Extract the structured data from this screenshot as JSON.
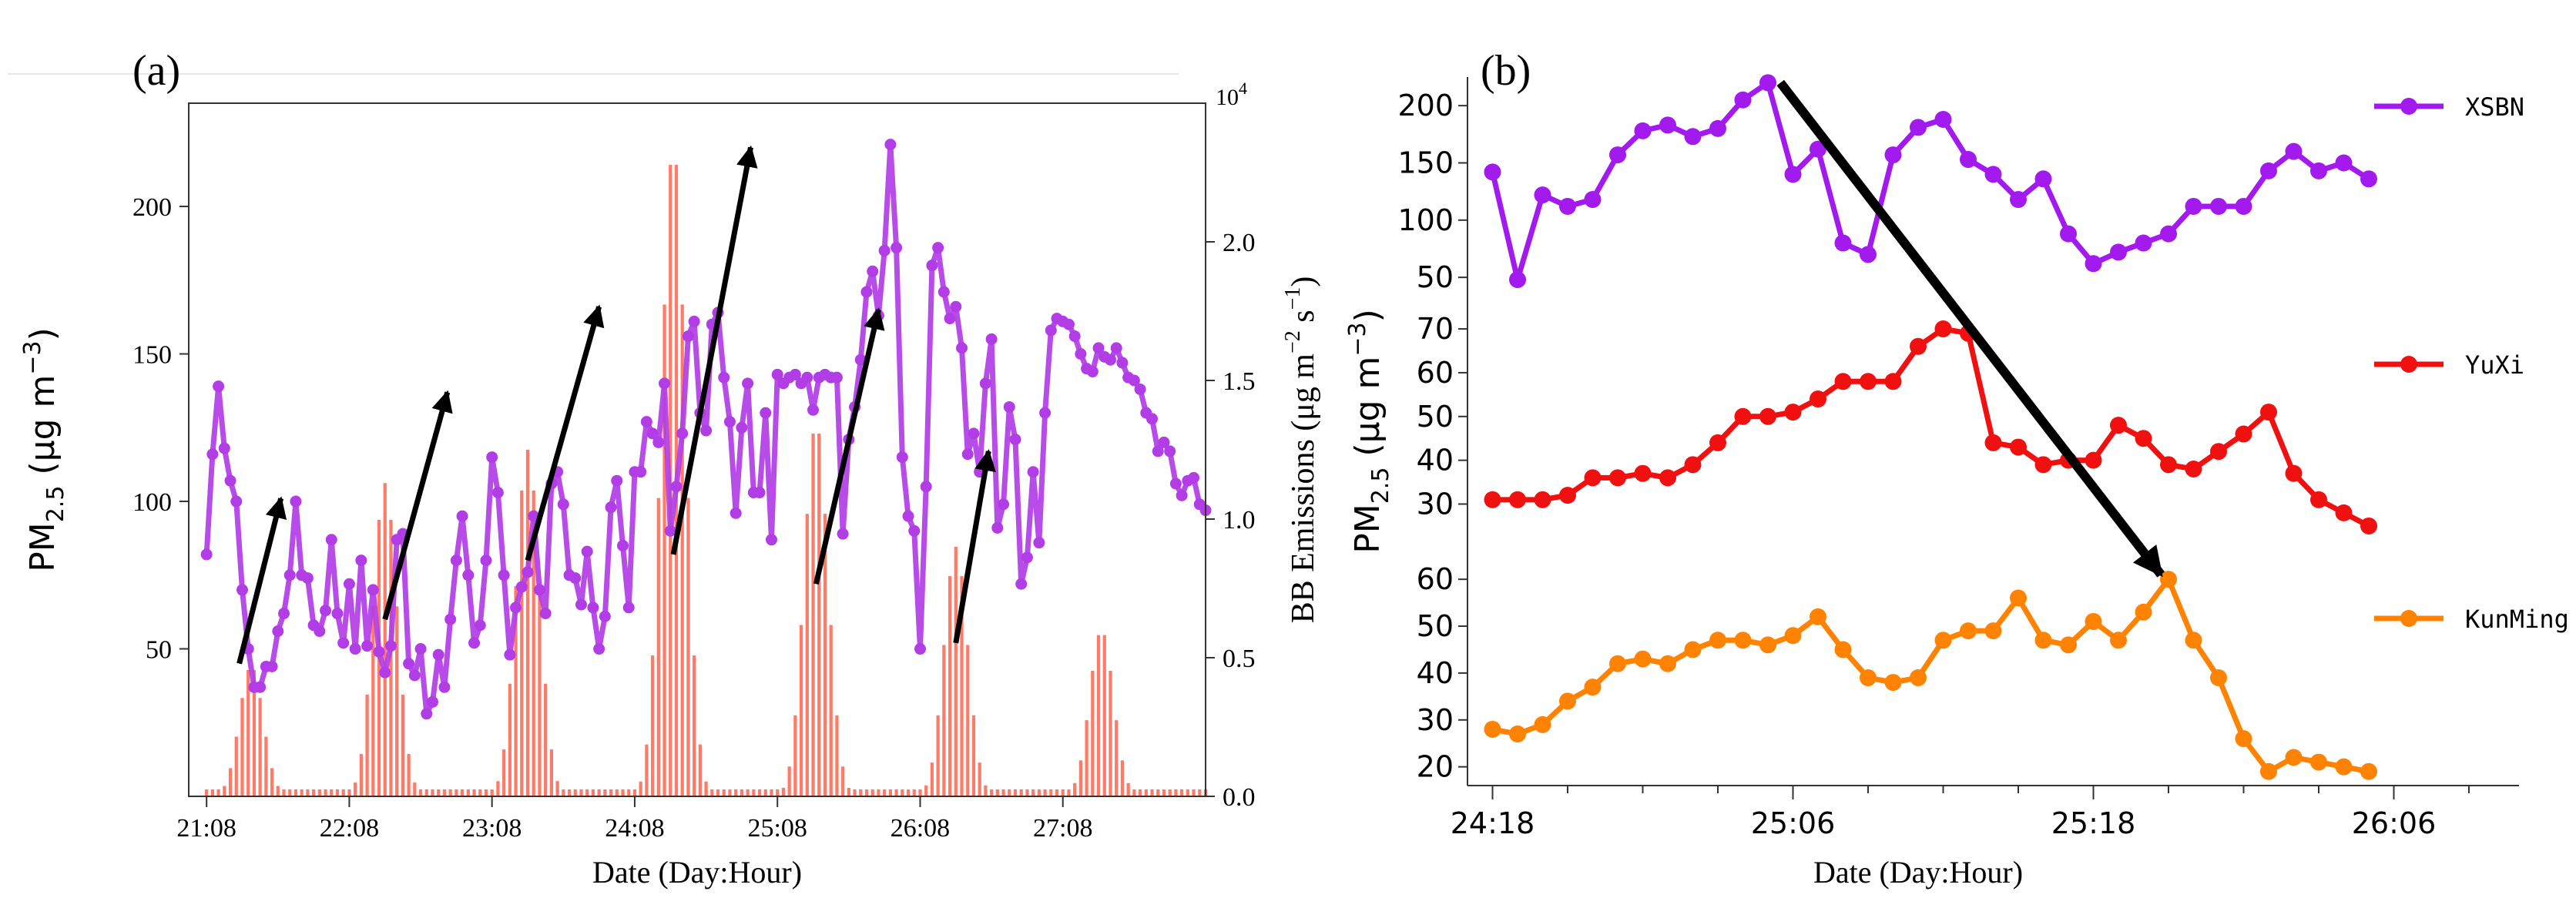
{
  "colors": {
    "pm_line": "#b23de6",
    "bb_bar": "#ff6b57",
    "xsbn": "#a21aee",
    "yuxi": "#f01010",
    "kunming": "#ff8200",
    "arrow": "#000000",
    "axis": "#333333"
  },
  "chart_data": [
    {
      "panel_label": "(a)",
      "type": "line+bar",
      "xlabel": "Date (Day:Hour)",
      "ylabel_left": {
        "main": "PM",
        "sub": "2.5",
        "unit_pre": " (μg m",
        "unit_sup": "−3",
        "unit_post": ")"
      },
      "ylabel_right": {
        "main": "BB Emissions (μg m",
        "sup1": "−2",
        "mid": " s",
        "sup2": "−1",
        "post": ")"
      },
      "right_axis_multiplier": "10",
      "right_axis_multiplier_exp": "4",
      "x_tick_labels": [
        "21:08",
        "22:08",
        "23:08",
        "24:08",
        "25:08",
        "26:08",
        "27:08"
      ],
      "x_hours": [
        0,
        24,
        48,
        72,
        96,
        120,
        144
      ],
      "xlim": [
        -3,
        168
      ],
      "ylim_left": [
        0,
        235
      ],
      "ylim_right": [
        0.0,
        2.5
      ],
      "y_ticks_left": [
        50,
        100,
        150,
        200
      ],
      "y_ticks_right": [
        0.0,
        0.5,
        1.0,
        1.5,
        2.0
      ],
      "y_tick_labels_right": [
        "0.0",
        "0.5",
        "1.0",
        "1.5",
        "2.0"
      ],
      "pm25_series": {
        "name": "PM2.5",
        "points": [
          [
            0,
            82
          ],
          [
            1,
            116
          ],
          [
            2,
            139
          ],
          [
            3,
            118
          ],
          [
            4,
            107
          ],
          [
            5,
            100
          ],
          [
            6,
            70
          ],
          [
            7,
            50
          ],
          [
            8,
            37
          ],
          [
            9,
            37
          ],
          [
            10,
            44
          ],
          [
            11,
            44
          ],
          [
            12,
            56
          ],
          [
            13,
            62
          ],
          [
            14,
            75
          ],
          [
            15,
            100
          ],
          [
            16,
            75
          ],
          [
            17,
            74
          ],
          [
            18,
            58
          ],
          [
            19,
            56
          ],
          [
            20,
            63
          ],
          [
            21,
            87
          ],
          [
            22,
            62
          ],
          [
            23,
            52
          ],
          [
            24,
            72
          ],
          [
            25,
            50
          ],
          [
            26,
            80
          ],
          [
            27,
            51
          ],
          [
            28,
            70
          ],
          [
            29,
            49
          ],
          [
            30,
            42
          ],
          [
            31,
            51
          ],
          [
            32,
            87
          ],
          [
            33,
            89
          ],
          [
            34,
            45
          ],
          [
            35,
            41
          ],
          [
            36,
            50
          ],
          [
            37,
            28
          ],
          [
            38,
            32
          ],
          [
            39,
            48
          ],
          [
            40,
            37
          ],
          [
            41,
            60
          ],
          [
            42,
            80
          ],
          [
            43,
            95
          ],
          [
            44,
            75
          ],
          [
            45,
            52
          ],
          [
            46,
            58
          ],
          [
            47,
            80
          ],
          [
            48,
            115
          ],
          [
            49,
            103
          ],
          [
            50,
            75
          ],
          [
            51,
            48
          ],
          [
            52,
            64
          ],
          [
            53,
            71
          ],
          [
            54,
            76
          ],
          [
            55,
            95
          ],
          [
            56,
            70
          ],
          [
            57,
            62
          ],
          [
            58,
            106
          ],
          [
            59,
            110
          ],
          [
            60,
            99
          ],
          [
            61,
            75
          ],
          [
            62,
            74
          ],
          [
            63,
            65
          ],
          [
            64,
            83
          ],
          [
            65,
            64
          ],
          [
            66,
            50
          ],
          [
            67,
            61
          ],
          [
            68,
            98
          ],
          [
            69,
            107
          ],
          [
            70,
            85
          ],
          [
            71,
            64
          ],
          [
            72,
            110
          ],
          [
            73,
            110
          ],
          [
            74,
            127
          ],
          [
            75,
            123
          ],
          [
            76,
            120
          ],
          [
            77,
            140
          ],
          [
            78,
            90
          ],
          [
            79,
            105
          ],
          [
            80,
            123
          ],
          [
            81,
            156
          ],
          [
            82,
            161
          ],
          [
            83,
            130
          ],
          [
            84,
            124
          ],
          [
            85,
            160
          ],
          [
            86,
            164
          ],
          [
            87,
            142
          ],
          [
            88,
            127
          ],
          [
            89,
            96
          ],
          [
            90,
            125
          ],
          [
            91,
            140
          ],
          [
            92,
            103
          ],
          [
            93,
            103
          ],
          [
            94,
            130
          ],
          [
            95,
            87
          ],
          [
            96,
            143
          ],
          [
            97,
            140
          ],
          [
            98,
            142
          ],
          [
            99,
            143
          ],
          [
            100,
            140
          ],
          [
            101,
            142
          ],
          [
            102,
            131
          ],
          [
            103,
            142
          ],
          [
            104,
            143
          ],
          [
            105,
            142
          ],
          [
            106,
            142
          ],
          [
            107,
            89
          ],
          [
            108,
            121
          ],
          [
            109,
            132
          ],
          [
            110,
            148
          ],
          [
            111,
            171
          ],
          [
            112,
            178
          ],
          [
            113,
            163
          ],
          [
            114,
            185
          ],
          [
            115,
            221
          ],
          [
            116,
            186
          ],
          [
            117,
            115
          ],
          [
            118,
            95
          ],
          [
            119,
            90
          ],
          [
            120,
            50
          ],
          [
            121,
            105
          ],
          [
            122,
            180
          ],
          [
            123,
            186
          ],
          [
            124,
            171
          ],
          [
            125,
            162
          ],
          [
            126,
            166
          ],
          [
            127,
            152
          ],
          [
            128,
            116
          ],
          [
            129,
            123
          ],
          [
            130,
            110
          ],
          [
            131,
            140
          ],
          [
            132,
            155
          ],
          [
            133,
            91
          ],
          [
            134,
            99
          ],
          [
            135,
            132
          ],
          [
            136,
            121
          ],
          [
            137,
            72
          ],
          [
            138,
            81
          ],
          [
            139,
            110
          ],
          [
            140,
            86
          ],
          [
            141,
            130
          ],
          [
            142,
            158
          ],
          [
            143,
            162
          ],
          [
            144,
            161
          ],
          [
            145,
            160
          ],
          [
            146,
            156
          ],
          [
            147,
            150
          ],
          [
            148,
            145
          ],
          [
            149,
            144
          ],
          [
            150,
            152
          ],
          [
            151,
            149
          ],
          [
            152,
            148
          ],
          [
            153,
            152
          ],
          [
            154,
            147
          ],
          [
            155,
            142
          ],
          [
            156,
            141
          ],
          [
            157,
            138
          ],
          [
            158,
            130
          ],
          [
            159,
            128
          ],
          [
            160,
            117
          ],
          [
            161,
            120
          ],
          [
            162,
            117
          ],
          [
            163,
            106
          ],
          [
            164,
            102
          ],
          [
            165,
            107
          ],
          [
            166,
            108
          ],
          [
            167,
            99
          ],
          [
            168,
            97
          ]
        ]
      },
      "bb_emission_bursts": [
        {
          "center": 7.5,
          "peak": 0.47
        },
        {
          "center": 30,
          "peak": 1.13
        },
        {
          "center": 54,
          "peak": 1.25
        },
        {
          "center": 78.5,
          "peak": 2.35
        },
        {
          "center": 102.5,
          "peak": 1.35
        },
        {
          "center": 126,
          "peak": 0.9
        },
        {
          "center": 150.5,
          "peak": 0.6
        }
      ],
      "bb_baseline": 0.025,
      "arrows": [
        {
          "from": [
            5.5,
            45
          ],
          "to": [
            12.5,
            101
          ]
        },
        {
          "from": [
            30,
            60
          ],
          "to": [
            40.5,
            137
          ]
        },
        {
          "from": [
            54,
            80
          ],
          "to": [
            66,
            166
          ]
        },
        {
          "from": [
            78.5,
            82
          ],
          "to": [
            91.5,
            220
          ]
        },
        {
          "from": [
            102.5,
            72
          ],
          "to": [
            113,
            165
          ]
        },
        {
          "from": [
            126,
            52
          ],
          "to": [
            131.5,
            117
          ]
        }
      ]
    },
    {
      "panel_label": "(b)",
      "type": "line",
      "xlabel": "Date (Day:Hour)",
      "ylabel": {
        "main": "PM",
        "sub": "2.5",
        "unit_pre": " (μg m",
        "unit_sup": "−3",
        "unit_post": ")"
      },
      "x_tick_labels": [
        "24:18",
        "25:06",
        "25:18",
        "26:06"
      ],
      "x_hours": [
        0,
        12,
        24,
        36
      ],
      "xlim": [
        -1,
        41
      ],
      "series": [
        {
          "name": "XSBN",
          "ylim": [
            40,
            225
          ],
          "y_ticks": [
            50,
            100,
            150,
            200
          ],
          "x": [
            0,
            1,
            2,
            3,
            4,
            5,
            6,
            7,
            8,
            9,
            10,
            11,
            12,
            13,
            14,
            15,
            16,
            17,
            18,
            19,
            20,
            21,
            22,
            23,
            24,
            25,
            26,
            27,
            28,
            29,
            30,
            31,
            32,
            33,
            34,
            35
          ],
          "values": [
            142,
            48,
            122,
            112,
            118,
            157,
            178,
            183,
            173,
            180,
            205,
            220,
            140,
            162,
            80,
            70,
            157,
            181,
            188,
            153,
            140,
            118,
            136,
            88,
            62,
            72,
            80,
            88,
            112,
            112,
            112,
            143,
            160,
            143,
            150,
            136
          ]
        },
        {
          "name": "YuXi",
          "ylim": [
            22,
            73
          ],
          "y_ticks": [
            30,
            40,
            50,
            60,
            70
          ],
          "x": [
            0,
            1,
            2,
            3,
            4,
            5,
            6,
            7,
            8,
            9,
            10,
            11,
            12,
            13,
            14,
            15,
            16,
            17,
            18,
            19,
            20,
            21,
            22,
            23,
            24,
            25,
            26,
            27,
            28,
            29,
            30,
            31,
            32,
            33,
            34,
            35
          ],
          "values": [
            31,
            31,
            31,
            32,
            36,
            36,
            37,
            36,
            39,
            44,
            50,
            50,
            51,
            54,
            58,
            58,
            58,
            66,
            70,
            69,
            44,
            43,
            39,
            40,
            40,
            48,
            45,
            39,
            38,
            42,
            46,
            51,
            37,
            31,
            28,
            25
          ]
        },
        {
          "name": "KunMing",
          "ylim": [
            16,
            62
          ],
          "y_ticks": [
            20,
            30,
            40,
            50,
            60
          ],
          "x": [
            0,
            1,
            2,
            3,
            4,
            5,
            6,
            7,
            8,
            9,
            10,
            11,
            12,
            13,
            14,
            15,
            16,
            17,
            18,
            19,
            20,
            21,
            22,
            23,
            24,
            25,
            26,
            27,
            28,
            29,
            30,
            31,
            32,
            33,
            34,
            35
          ],
          "values": [
            28,
            27,
            29,
            34,
            37,
            42,
            43,
            42,
            45,
            47,
            47,
            46,
            48,
            52,
            45,
            39,
            38,
            39,
            47,
            49,
            49,
            56,
            47,
            46,
            51,
            47,
            53,
            60,
            47,
            39,
            26,
            19,
            22,
            21,
            20,
            19
          ]
        }
      ],
      "arrow": {
        "from": [
          11.5,
          220
        ],
        "from_series": "XSBN",
        "to": [
          26.7,
          61
        ],
        "to_series": "KunMing"
      }
    }
  ]
}
